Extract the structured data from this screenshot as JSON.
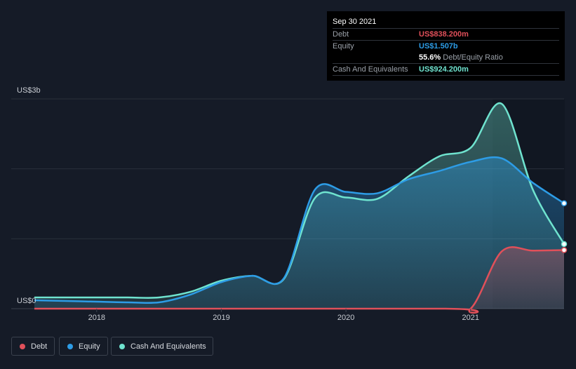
{
  "tooltip": {
    "date": "Sep 30 2021",
    "debt_label": "Debt",
    "debt_value": "US$838.200m",
    "equity_label": "Equity",
    "equity_value": "US$1.507b",
    "ratio_value": "55.6%",
    "ratio_label": "Debt/Equity Ratio",
    "cash_label": "Cash And Equivalents",
    "cash_value": "US$924.200m"
  },
  "colors": {
    "background": "#151b27",
    "debt": "#e0505a",
    "equity": "#2d9ce6",
    "cash": "#6fe3cf",
    "grid": "#2a303b"
  },
  "legend": [
    {
      "name": "Debt",
      "color": "#e0505a"
    },
    {
      "name": "Equity",
      "color": "#2d9ce6"
    },
    {
      "name": "Cash And Equivalents",
      "color": "#6fe3cf"
    }
  ],
  "chart_data": {
    "type": "area",
    "y_label_top": "US$3b",
    "y_label_bottom": "US$0",
    "ylim": [
      0,
      3
    ],
    "xlim": [
      2017.5,
      2021.75
    ],
    "x_ticks": [
      "2018",
      "2019",
      "2020",
      "2021"
    ],
    "x_tick_values": [
      2018,
      2019,
      2020,
      2021
    ],
    "grid": true,
    "series": [
      {
        "name": "Debt",
        "x": [
          2017.5,
          2020.75,
          2021.0,
          2021.25,
          2021.5,
          2021.75
        ],
        "y": [
          0,
          0,
          0,
          0.82,
          0.83,
          0.838
        ]
      },
      {
        "name": "Equity",
        "x": [
          2017.5,
          2017.75,
          2018.0,
          2018.25,
          2018.5,
          2018.75,
          2019.0,
          2019.25,
          2019.5,
          2019.75,
          2020.0,
          2020.25,
          2020.5,
          2020.75,
          2021.0,
          2021.25,
          2021.5,
          2021.75
        ],
        "y": [
          0.12,
          0.11,
          0.1,
          0.09,
          0.09,
          0.2,
          0.38,
          0.47,
          0.43,
          1.7,
          1.67,
          1.65,
          1.85,
          1.97,
          2.1,
          2.15,
          1.8,
          1.507
        ]
      },
      {
        "name": "Cash And Equivalents",
        "x": [
          2017.5,
          2017.75,
          2018.0,
          2018.25,
          2018.5,
          2018.75,
          2019.0,
          2019.25,
          2019.5,
          2019.75,
          2020.0,
          2020.25,
          2020.5,
          2020.75,
          2021.0,
          2021.25,
          2021.5,
          2021.75
        ],
        "y": [
          0.16,
          0.16,
          0.16,
          0.16,
          0.16,
          0.24,
          0.4,
          0.47,
          0.42,
          1.58,
          1.59,
          1.57,
          1.89,
          2.18,
          2.3,
          2.93,
          1.7,
          0.9242
        ]
      }
    ]
  }
}
